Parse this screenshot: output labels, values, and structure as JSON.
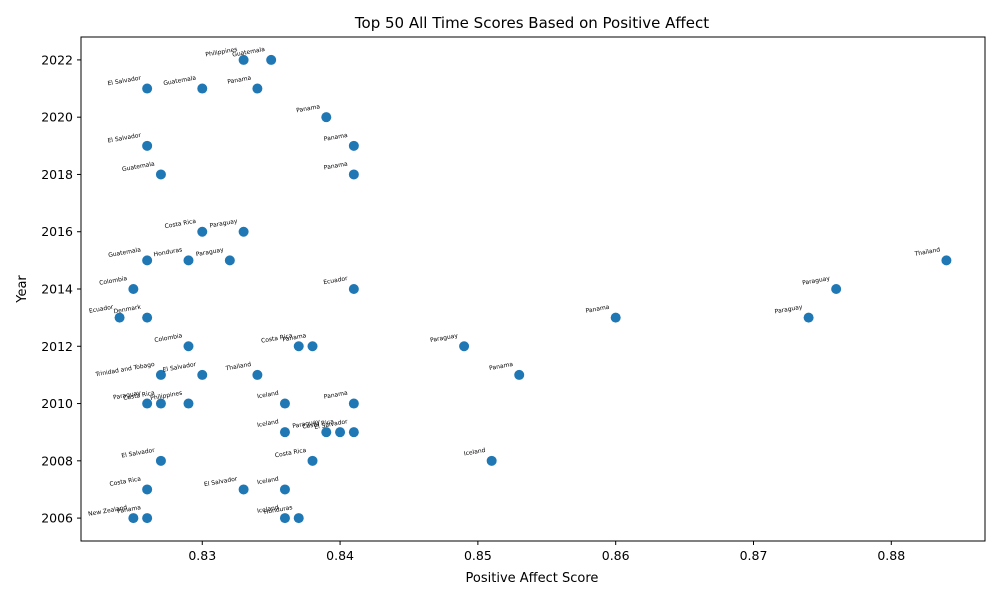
{
  "chart_data": {
    "type": "scatter",
    "title": "Top 50 All Time Scores Based on Positive Affect",
    "xlabel": "Positive Affect Score",
    "ylabel": "Year",
    "xlim": [
      0.8212,
      0.8868
    ],
    "ylim": [
      2005.2,
      2022.8
    ],
    "xticks": [
      0.83,
      0.84,
      0.85,
      0.86,
      0.87,
      0.88
    ],
    "xtick_labels": [
      "0.83",
      "0.84",
      "0.85",
      "0.86",
      "0.87",
      "0.88"
    ],
    "yticks": [
      2006,
      2008,
      2010,
      2012,
      2014,
      2016,
      2018,
      2020,
      2022
    ],
    "ytick_labels": [
      "2006",
      "2008",
      "2010",
      "2012",
      "2014",
      "2016",
      "2018",
      "2020",
      "2022"
    ],
    "grid": false,
    "marker_color": "#1f77b4",
    "points": [
      {
        "x": 0.833,
        "y": 2022,
        "label": "Philippines"
      },
      {
        "x": 0.835,
        "y": 2022,
        "label": "Guatemala"
      },
      {
        "x": 0.826,
        "y": 2021,
        "label": "El Salvador"
      },
      {
        "x": 0.83,
        "y": 2021,
        "label": "Guatemala"
      },
      {
        "x": 0.834,
        "y": 2021,
        "label": "Panama"
      },
      {
        "x": 0.839,
        "y": 2020,
        "label": "Panama"
      },
      {
        "x": 0.826,
        "y": 2019,
        "label": "El Salvador"
      },
      {
        "x": 0.841,
        "y": 2019,
        "label": "Panama"
      },
      {
        "x": 0.827,
        "y": 2018,
        "label": "Guatemala"
      },
      {
        "x": 0.841,
        "y": 2018,
        "label": "Panama"
      },
      {
        "x": 0.83,
        "y": 2016,
        "label": "Costa Rica"
      },
      {
        "x": 0.833,
        "y": 2016,
        "label": "Paraguay"
      },
      {
        "x": 0.826,
        "y": 2015,
        "label": "Guatemala"
      },
      {
        "x": 0.829,
        "y": 2015,
        "label": "Honduras"
      },
      {
        "x": 0.832,
        "y": 2015,
        "label": "Paraguay"
      },
      {
        "x": 0.884,
        "y": 2015,
        "label": "Thailand"
      },
      {
        "x": 0.825,
        "y": 2014,
        "label": "Colombia"
      },
      {
        "x": 0.841,
        "y": 2014,
        "label": "Ecuador"
      },
      {
        "x": 0.876,
        "y": 2014,
        "label": "Paraguay"
      },
      {
        "x": 0.824,
        "y": 2013,
        "label": "Ecuador"
      },
      {
        "x": 0.826,
        "y": 2013,
        "label": "Denmark"
      },
      {
        "x": 0.86,
        "y": 2013,
        "label": "Panama"
      },
      {
        "x": 0.874,
        "y": 2013,
        "label": "Paraguay"
      },
      {
        "x": 0.829,
        "y": 2012,
        "label": "Colombia"
      },
      {
        "x": 0.837,
        "y": 2012,
        "label": "Costa Rica"
      },
      {
        "x": 0.838,
        "y": 2012,
        "label": "Panama"
      },
      {
        "x": 0.849,
        "y": 2012,
        "label": "Paraguay"
      },
      {
        "x": 0.827,
        "y": 2011,
        "label": "Trinidad and Tobago"
      },
      {
        "x": 0.83,
        "y": 2011,
        "label": "El Salvador"
      },
      {
        "x": 0.834,
        "y": 2011,
        "label": "Thailand"
      },
      {
        "x": 0.853,
        "y": 2011,
        "label": "Panama"
      },
      {
        "x": 0.826,
        "y": 2010,
        "label": "Paraguay"
      },
      {
        "x": 0.827,
        "y": 2010,
        "label": "Costa Rica"
      },
      {
        "x": 0.829,
        "y": 2010,
        "label": "Philippines"
      },
      {
        "x": 0.836,
        "y": 2010,
        "label": "Iceland"
      },
      {
        "x": 0.841,
        "y": 2010,
        "label": "Panama"
      },
      {
        "x": 0.836,
        "y": 2009,
        "label": "Iceland"
      },
      {
        "x": 0.839,
        "y": 2009,
        "label": "Paraguay"
      },
      {
        "x": 0.84,
        "y": 2009,
        "label": "Costa Rica"
      },
      {
        "x": 0.841,
        "y": 2009,
        "label": "El Salvador"
      },
      {
        "x": 0.827,
        "y": 2008,
        "label": "El Salvador"
      },
      {
        "x": 0.838,
        "y": 2008,
        "label": "Costa Rica"
      },
      {
        "x": 0.851,
        "y": 2008,
        "label": "Iceland"
      },
      {
        "x": 0.826,
        "y": 2007,
        "label": "Costa Rica"
      },
      {
        "x": 0.833,
        "y": 2007,
        "label": "El Salvador"
      },
      {
        "x": 0.836,
        "y": 2007,
        "label": "Iceland"
      },
      {
        "x": 0.825,
        "y": 2006,
        "label": "New Zealand"
      },
      {
        "x": 0.826,
        "y": 2006,
        "label": "Panama"
      },
      {
        "x": 0.836,
        "y": 2006,
        "label": "Iceland"
      },
      {
        "x": 0.837,
        "y": 2006,
        "label": "Honduras"
      }
    ]
  }
}
